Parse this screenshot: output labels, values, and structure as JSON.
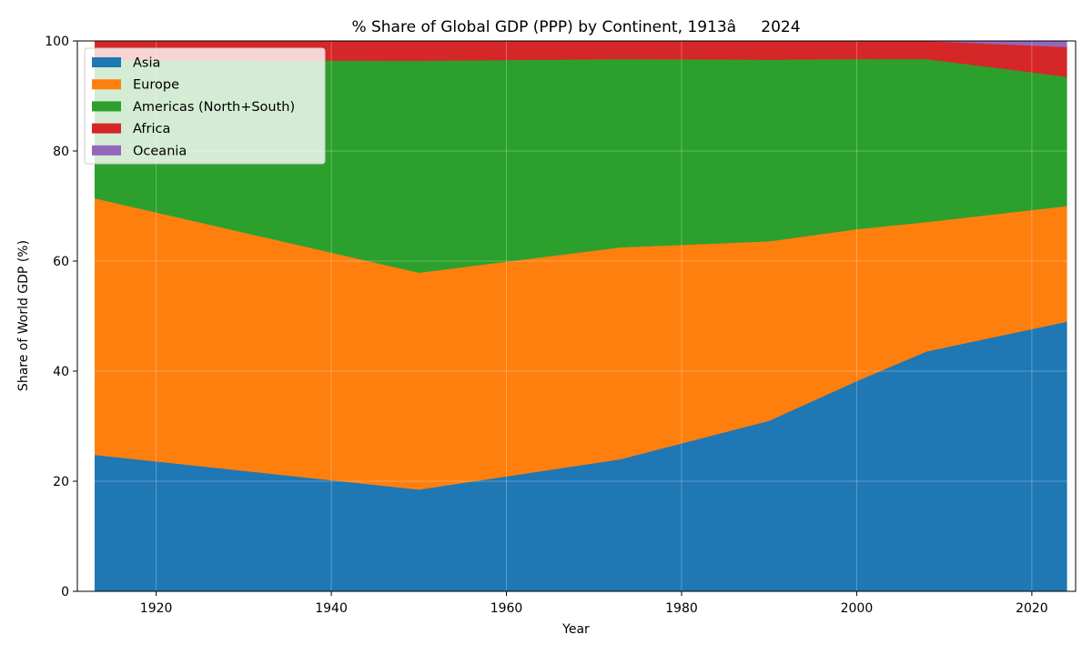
{
  "chart_data": {
    "type": "area",
    "stacked": true,
    "title": "% Share of Global GDP (PPP) by Continent, 1913â2024",
    "xlabel": "Year",
    "ylabel": "Share of World GDP (%)",
    "xlim": [
      1911,
      2025
    ],
    "ylim": [
      0,
      100
    ],
    "xticks": [
      1920,
      1940,
      1960,
      1980,
      2000,
      2020
    ],
    "yticks": [
      0,
      20,
      40,
      60,
      80,
      100
    ],
    "grid": true,
    "legend_position": "top-left",
    "x": [
      1913,
      1950,
      1973,
      1990,
      2000,
      2008,
      2024
    ],
    "series": [
      {
        "name": "Asia",
        "color": "#1f77b4",
        "values": [
          24.8,
          18.5,
          24.0,
          31.0,
          38.2,
          43.6,
          49.0
        ]
      },
      {
        "name": "Europe",
        "color": "#ff7f0e",
        "values": [
          46.6,
          39.4,
          38.5,
          32.6,
          27.6,
          23.5,
          21.0
        ]
      },
      {
        "name": "Americas (North+South)",
        "color": "#2ca02c",
        "values": [
          25.1,
          38.5,
          34.2,
          33.0,
          30.9,
          29.6,
          23.5
        ]
      },
      {
        "name": "Africa",
        "color": "#d62728",
        "values": [
          3.5,
          3.6,
          3.3,
          3.4,
          3.3,
          3.3,
          5.4
        ]
      },
      {
        "name": "Oceania",
        "color": "#9467bd",
        "values": [
          0.0,
          0.0,
          0.0,
          0.0,
          0.0,
          0.0,
          1.1
        ]
      }
    ]
  }
}
